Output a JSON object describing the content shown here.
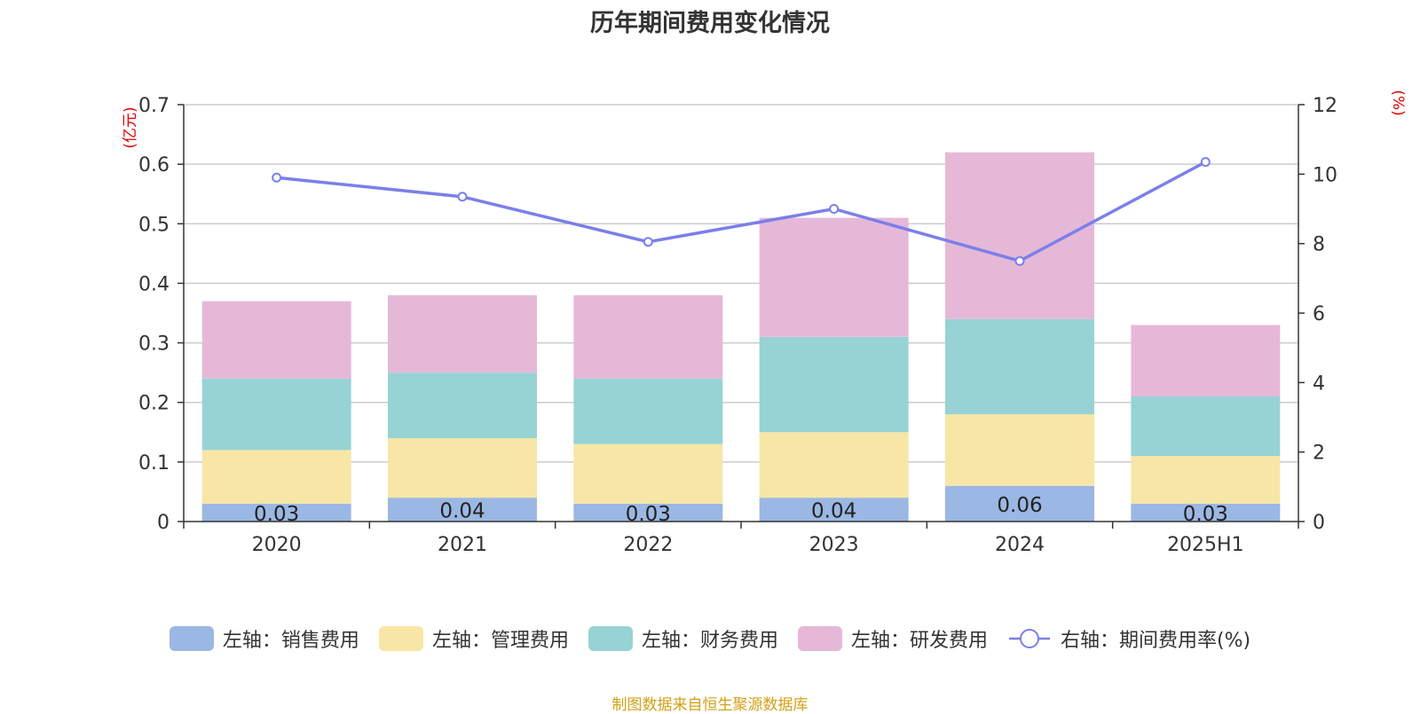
{
  "chart_data": {
    "type": "bar",
    "title": "历年期间费用变化情况",
    "categories": [
      "2020",
      "2021",
      "2022",
      "2023",
      "2024",
      "2025H1"
    ],
    "left_axis": {
      "unit_label": "(亿元)",
      "ylim": [
        0,
        0.7
      ],
      "ticks": [
        "0",
        "0.1",
        "0.2",
        "0.3",
        "0.4",
        "0.5",
        "0.6",
        "0.7"
      ]
    },
    "right_axis": {
      "unit_label": "(%)",
      "ylim": [
        0,
        12
      ],
      "ticks": [
        "0",
        "2",
        "4",
        "6",
        "8",
        "10",
        "12"
      ]
    },
    "stacked": true,
    "series": [
      {
        "name": "左轴：销售费用",
        "kind": "bar",
        "color": "#9bb7e3",
        "values": [
          0.03,
          0.04,
          0.03,
          0.04,
          0.06,
          0.03
        ],
        "labels": [
          "0.03",
          "0.04",
          "0.03",
          "0.04",
          "0.06",
          "0.03"
        ]
      },
      {
        "name": "左轴：管理费用",
        "kind": "bar",
        "color": "#f7e6a6",
        "values": [
          0.09,
          0.1,
          0.1,
          0.11,
          0.12,
          0.08
        ]
      },
      {
        "name": "左轴：财务费用",
        "kind": "bar",
        "color": "#97d3d4",
        "values": [
          0.12,
          0.11,
          0.11,
          0.16,
          0.16,
          0.1
        ]
      },
      {
        "name": "左轴：研发费用",
        "kind": "bar",
        "color": "#e6b8d8",
        "values": [
          0.13,
          0.13,
          0.14,
          0.2,
          0.28,
          0.12
        ]
      },
      {
        "name": "右轴：期间费用率(%)",
        "kind": "line",
        "axis": "right",
        "color": "#7b7fea",
        "values": [
          9.9,
          9.35,
          8.05,
          9.0,
          7.5,
          10.35
        ]
      }
    ],
    "grid": true,
    "legend_position": "bottom"
  },
  "source_note": "制图数据来自恒生聚源数据库"
}
